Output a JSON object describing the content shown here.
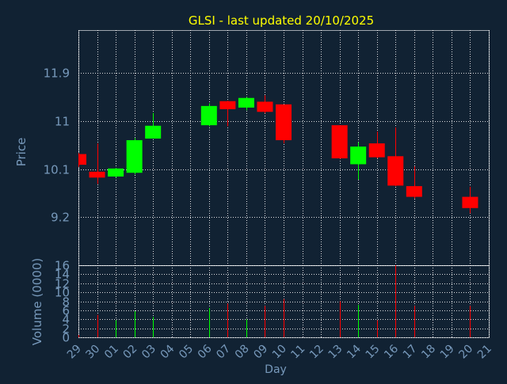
{
  "chart_data": {
    "type": "candlestick",
    "title": "GLSI - last updated 20/10/2025",
    "xlabel": "Day",
    "day_labels": [
      "29",
      "30",
      "01",
      "02",
      "03",
      "04",
      "05",
      "06",
      "07",
      "08",
      "09",
      "10",
      "11",
      "12",
      "13",
      "14",
      "15",
      "16",
      "17",
      "18",
      "19",
      "20",
      "21"
    ],
    "price_panel": {
      "ylabel": "Price",
      "ylim": [
        8.3,
        12.7
      ],
      "yticks": [
        9.2,
        10.1,
        11,
        11.9
      ],
      "grid": true
    },
    "volume_panel": {
      "ylabel": "Volume (0000)",
      "ylim": [
        0,
        16
      ],
      "yticks": [
        0,
        2,
        4,
        6,
        8,
        10,
        12,
        14,
        16
      ],
      "grid": true
    },
    "colors": {
      "background": "#112233",
      "text": "#7799bb",
      "title": "#ffff00",
      "grid": "#ffffff",
      "up": "#00ff00",
      "down": "#ff0000"
    },
    "candles": [
      {
        "day": "29",
        "open": 10.38,
        "high": 10.4,
        "low": 10.14,
        "close": 10.18,
        "volume": 0.5
      },
      {
        "day": "30",
        "open": 10.05,
        "high": 10.58,
        "low": 9.82,
        "close": 9.94,
        "volume": 5.0
      },
      {
        "day": "01",
        "open": 9.96,
        "high": 10.12,
        "low": 9.94,
        "close": 10.11,
        "volume": 3.8
      },
      {
        "day": "02",
        "open": 10.03,
        "high": 10.68,
        "low": 10.0,
        "close": 10.64,
        "volume": 5.8
      },
      {
        "day": "03",
        "open": 10.67,
        "high": 11.15,
        "low": 10.67,
        "close": 10.91,
        "volume": 4.5
      },
      {
        "day": "06",
        "open": 10.92,
        "high": 11.33,
        "low": 10.9,
        "close": 11.28,
        "volume": 6.5
      },
      {
        "day": "07",
        "open": 11.37,
        "high": 11.38,
        "low": 10.9,
        "close": 11.22,
        "volume": 7.5
      },
      {
        "day": "08",
        "open": 11.25,
        "high": 11.45,
        "low": 11.2,
        "close": 11.43,
        "volume": 4.0
      },
      {
        "day": "09",
        "open": 11.36,
        "high": 11.48,
        "low": 11.14,
        "close": 11.17,
        "volume": 7.0
      },
      {
        "day": "10",
        "open": 11.31,
        "high": 11.31,
        "low": 10.58,
        "close": 10.64,
        "volume": 8.5
      },
      {
        "day": "13",
        "open": 10.92,
        "high": 10.92,
        "low": 10.29,
        "close": 10.3,
        "volume": 8.0
      },
      {
        "day": "14",
        "open": 10.19,
        "high": 10.6,
        "low": 9.9,
        "close": 10.52,
        "volume": 7.2
      },
      {
        "day": "15",
        "open": 10.58,
        "high": 10.8,
        "low": 10.3,
        "close": 10.32,
        "volume": 3.8
      },
      {
        "day": "16",
        "open": 10.34,
        "high": 10.88,
        "low": 9.78,
        "close": 9.79,
        "volume": 16.0
      },
      {
        "day": "17",
        "open": 9.78,
        "high": 10.15,
        "low": 9.55,
        "close": 9.58,
        "volume": 7.0
      },
      {
        "day": "20",
        "open": 9.58,
        "high": 9.77,
        "low": 9.27,
        "close": 9.37,
        "volume": 7.0
      }
    ]
  }
}
